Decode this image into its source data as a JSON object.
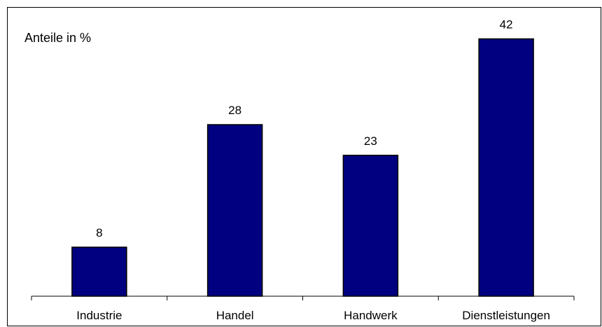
{
  "chart_data": {
    "type": "bar",
    "title": "Anteile in %",
    "categories": [
      "Industrie",
      "Handel",
      "Handwerk",
      "Dienstleistungen"
    ],
    "values": [
      8,
      28,
      23,
      42
    ],
    "xlabel": "",
    "ylabel": "",
    "ylim": [
      0,
      45
    ],
    "grid": false,
    "legend": "none",
    "data_labels": true,
    "bar_color": "#000080",
    "bar_border_color": "#000000"
  }
}
